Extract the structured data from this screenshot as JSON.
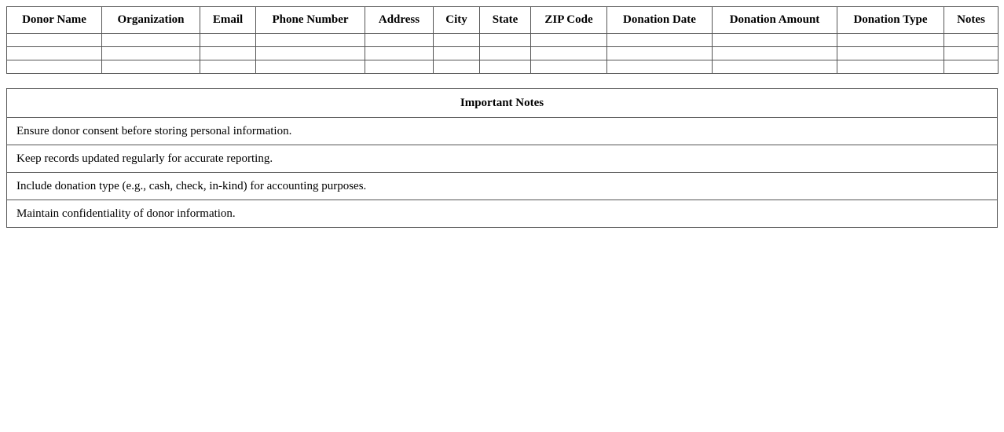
{
  "donor_table": {
    "headers": [
      "Donor Name",
      "Organization",
      "Email",
      "Phone Number",
      "Address",
      "City",
      "State",
      "ZIP Code",
      "Donation Date",
      "Donation Amount",
      "Donation Type",
      "Notes"
    ],
    "empty_row_count": 3
  },
  "notes_table": {
    "title": "Important Notes",
    "items": [
      "Ensure donor consent before storing personal information.",
      "Keep records updated regularly for accurate reporting.",
      "Include donation type (e.g., cash, check, in-kind) for accounting purposes.",
      "Maintain confidentiality of donor information."
    ]
  },
  "colors": {
    "border": "#555555",
    "text": "#000000",
    "background": "#ffffff"
  }
}
